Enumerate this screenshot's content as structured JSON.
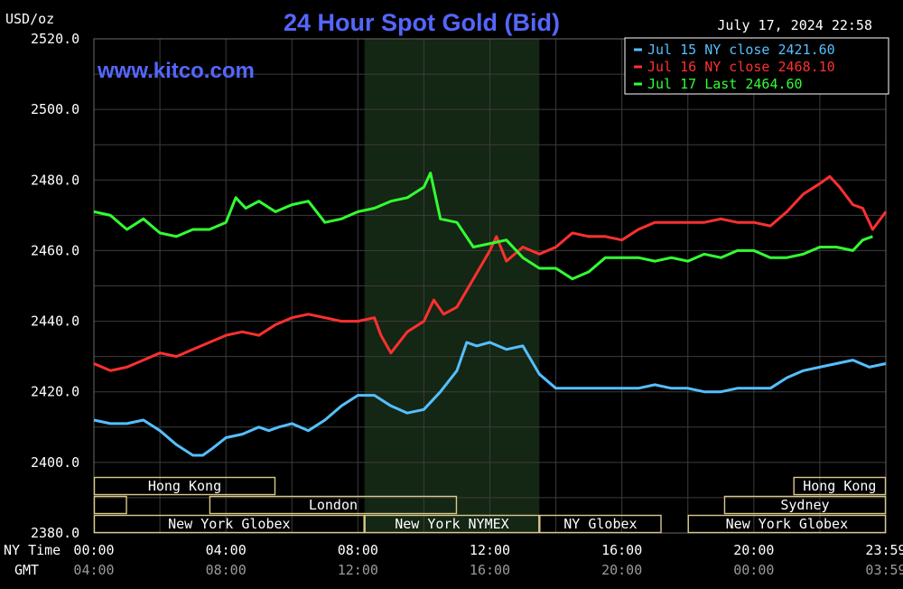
{
  "chart_data": {
    "type": "line",
    "title": "24 Hour Spot Gold (Bid)",
    "ylabel": "USD/oz",
    "watermark": "www.kitco.com",
    "timestamp": "July 17, 2024 22:58",
    "ylim": [
      2380,
      2520
    ],
    "yticks": [
      "2520.0",
      "2500.0",
      "2480.0",
      "2460.0",
      "2440.0",
      "2420.0",
      "2400.0",
      "2380.0"
    ],
    "xlim_hours": [
      0,
      24
    ],
    "x_axis_label_ny": "NY Time",
    "x_axis_label_gmt": "GMT",
    "xticks_ny": [
      "00:00",
      "04:00",
      "08:00",
      "12:00",
      "16:00",
      "20:00",
      "23:59"
    ],
    "xticks_gmt": [
      "04:00",
      "08:00",
      "12:00",
      "16:00",
      "20:00",
      "00:00",
      "03:59"
    ],
    "xtick_hours": [
      0,
      4,
      8,
      12,
      16,
      20,
      24
    ],
    "grid": true,
    "shaded_session_hours": [
      8.2,
      13.5
    ],
    "legend_position": "top-right",
    "series": [
      {
        "name": "Jul 15 NY close 2421.60",
        "color": "#55bfff",
        "points": [
          [
            0,
            2412
          ],
          [
            0.5,
            2411
          ],
          [
            1,
            2411
          ],
          [
            1.5,
            2412
          ],
          [
            2,
            2409
          ],
          [
            2.5,
            2405
          ],
          [
            3,
            2402
          ],
          [
            3.3,
            2402
          ],
          [
            3.6,
            2404
          ],
          [
            4,
            2407
          ],
          [
            4.5,
            2408
          ],
          [
            5,
            2410
          ],
          [
            5.3,
            2409
          ],
          [
            5.6,
            2410
          ],
          [
            6,
            2411
          ],
          [
            6.5,
            2409
          ],
          [
            7,
            2412
          ],
          [
            7.5,
            2416
          ],
          [
            8,
            2419
          ],
          [
            8.5,
            2419
          ],
          [
            9,
            2416
          ],
          [
            9.5,
            2414
          ],
          [
            10,
            2415
          ],
          [
            10.5,
            2420
          ],
          [
            11,
            2426
          ],
          [
            11.3,
            2434
          ],
          [
            11.6,
            2433
          ],
          [
            12,
            2434
          ],
          [
            12.5,
            2432
          ],
          [
            13,
            2433
          ],
          [
            13.5,
            2425
          ],
          [
            14,
            2421
          ],
          [
            14.5,
            2421
          ],
          [
            15,
            2421
          ],
          [
            15.5,
            2421
          ],
          [
            16,
            2421
          ],
          [
            16.5,
            2421
          ],
          [
            17,
            2422
          ],
          [
            17.5,
            2421
          ],
          [
            18,
            2421
          ],
          [
            18.5,
            2420
          ],
          [
            19,
            2420
          ],
          [
            19.5,
            2421
          ],
          [
            20,
            2421
          ],
          [
            20.5,
            2421
          ],
          [
            21,
            2424
          ],
          [
            21.5,
            2426
          ],
          [
            22,
            2427
          ],
          [
            22.5,
            2428
          ],
          [
            23,
            2429
          ],
          [
            23.5,
            2427
          ],
          [
            24,
            2428
          ]
        ]
      },
      {
        "name": "Jul 16 NY close 2468.10",
        "color": "#ff3030",
        "points": [
          [
            0,
            2428
          ],
          [
            0.5,
            2426
          ],
          [
            1,
            2427
          ],
          [
            1.5,
            2429
          ],
          [
            2,
            2431
          ],
          [
            2.5,
            2430
          ],
          [
            3,
            2432
          ],
          [
            3.5,
            2434
          ],
          [
            4,
            2436
          ],
          [
            4.5,
            2437
          ],
          [
            5,
            2436
          ],
          [
            5.5,
            2439
          ],
          [
            6,
            2441
          ],
          [
            6.5,
            2442
          ],
          [
            7,
            2441
          ],
          [
            7.5,
            2440
          ],
          [
            8,
            2440
          ],
          [
            8.5,
            2441
          ],
          [
            8.7,
            2436
          ],
          [
            9,
            2431
          ],
          [
            9.5,
            2437
          ],
          [
            10,
            2440
          ],
          [
            10.3,
            2446
          ],
          [
            10.6,
            2442
          ],
          [
            11,
            2444
          ],
          [
            11.5,
            2452
          ],
          [
            12,
            2460
          ],
          [
            12.2,
            2464
          ],
          [
            12.5,
            2457
          ],
          [
            13,
            2461
          ],
          [
            13.5,
            2459
          ],
          [
            14,
            2461
          ],
          [
            14.5,
            2465
          ],
          [
            15,
            2464
          ],
          [
            15.5,
            2464
          ],
          [
            16,
            2463
          ],
          [
            16.5,
            2466
          ],
          [
            17,
            2468
          ],
          [
            17.5,
            2468
          ],
          [
            18,
            2468
          ],
          [
            18.5,
            2468
          ],
          [
            19,
            2469
          ],
          [
            19.5,
            2468
          ],
          [
            20,
            2468
          ],
          [
            20.5,
            2467
          ],
          [
            21,
            2471
          ],
          [
            21.5,
            2476
          ],
          [
            22,
            2479
          ],
          [
            22.3,
            2481
          ],
          [
            22.6,
            2478
          ],
          [
            23,
            2473
          ],
          [
            23.3,
            2472
          ],
          [
            23.6,
            2466
          ],
          [
            24,
            2471
          ]
        ]
      },
      {
        "name": "Jul 17 Last 2464.60",
        "color": "#33ff33",
        "points": [
          [
            0,
            2471
          ],
          [
            0.5,
            2470
          ],
          [
            1,
            2466
          ],
          [
            1.5,
            2469
          ],
          [
            2,
            2465
          ],
          [
            2.5,
            2464
          ],
          [
            3,
            2466
          ],
          [
            3.5,
            2466
          ],
          [
            4,
            2468
          ],
          [
            4.3,
            2475
          ],
          [
            4.6,
            2472
          ],
          [
            5,
            2474
          ],
          [
            5.5,
            2471
          ],
          [
            6,
            2473
          ],
          [
            6.5,
            2474
          ],
          [
            7,
            2468
          ],
          [
            7.5,
            2469
          ],
          [
            8,
            2471
          ],
          [
            8.5,
            2472
          ],
          [
            9,
            2474
          ],
          [
            9.5,
            2475
          ],
          [
            10,
            2478
          ],
          [
            10.2,
            2482
          ],
          [
            10.5,
            2469
          ],
          [
            11,
            2468
          ],
          [
            11.5,
            2461
          ],
          [
            12,
            2462
          ],
          [
            12.5,
            2463
          ],
          [
            13,
            2458
          ],
          [
            13.5,
            2455
          ],
          [
            14,
            2455
          ],
          [
            14.5,
            2452
          ],
          [
            15,
            2454
          ],
          [
            15.5,
            2458
          ],
          [
            16,
            2458
          ],
          [
            16.5,
            2458
          ],
          [
            17,
            2457
          ],
          [
            17.5,
            2458
          ],
          [
            18,
            2457
          ],
          [
            18.5,
            2459
          ],
          [
            19,
            2458
          ],
          [
            19.5,
            2460
          ],
          [
            20,
            2460
          ],
          [
            20.5,
            2458
          ],
          [
            21,
            2458
          ],
          [
            21.5,
            2459
          ],
          [
            22,
            2461
          ],
          [
            22.5,
            2461
          ],
          [
            23,
            2460
          ],
          [
            23.3,
            2463
          ],
          [
            23.6,
            2464
          ]
        ]
      }
    ],
    "sessions": [
      {
        "label": "Hong Kong",
        "start": 0,
        "end": 5.5,
        "row": 0
      },
      {
        "label": "",
        "start": 0,
        "end": 1,
        "row": 1
      },
      {
        "label": "London",
        "start": 3.5,
        "end": 11,
        "row": 1
      },
      {
        "label": "New York Globex",
        "start": 0,
        "end": 8.2,
        "row": 2
      },
      {
        "label": "New York NYMEX",
        "start": 8.2,
        "end": 13.5,
        "row": 2
      },
      {
        "label": "NY Globex",
        "start": 13.5,
        "end": 17.2,
        "row": 2
      },
      {
        "label": "Hong Kong",
        "start": 21.2,
        "end": 24,
        "row": 0
      },
      {
        "label": "Sydney",
        "start": 19.1,
        "end": 24,
        "row": 1
      },
      {
        "label": "New York Globex",
        "start": 18,
        "end": 24,
        "row": 2
      }
    ],
    "colors": {
      "background": "#000000",
      "shaded": "#142614",
      "grid": "#3c3c3c",
      "axis_text": "#ffffff",
      "gmt_text": "#9a9a9a",
      "title": "#5566ff",
      "session_box": "#d8c88a",
      "session_text": "#ffffff"
    }
  }
}
